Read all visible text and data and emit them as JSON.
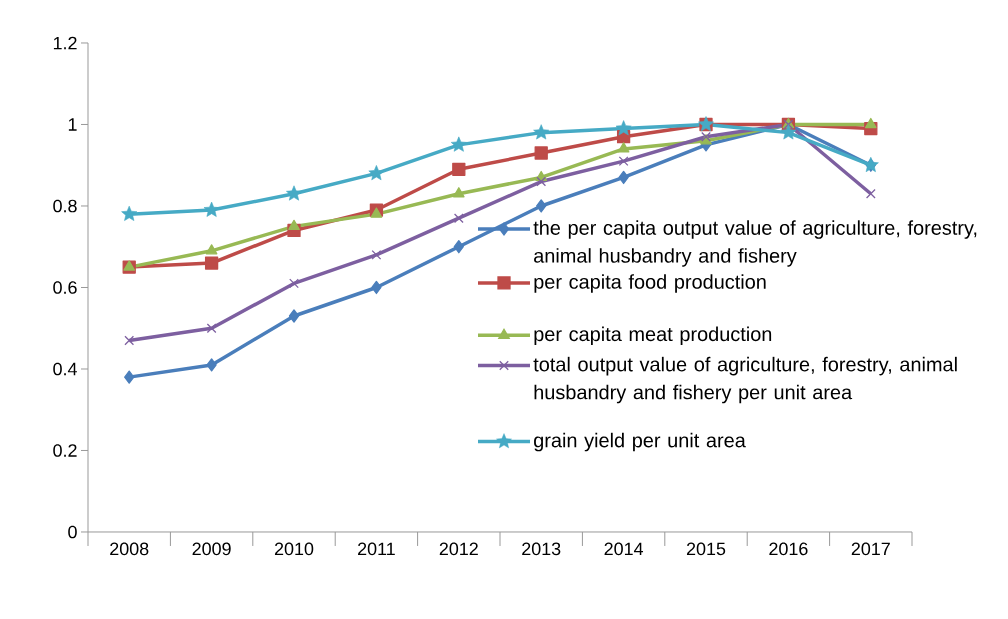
{
  "chart_data": {
    "type": "line",
    "categories": [
      "2008",
      "2009",
      "2010",
      "2011",
      "2012",
      "2013",
      "2014",
      "2015",
      "2016",
      "2017"
    ],
    "series": [
      {
        "name": "the per capita output value of agriculture, forestry, animal husbandry and fishery",
        "color": "#4a7ebb",
        "marker": "diamond",
        "values": [
          0.38,
          0.41,
          0.53,
          0.6,
          0.7,
          0.8,
          0.87,
          0.95,
          1.0,
          0.9
        ]
      },
      {
        "name": "per capita food production",
        "color": "#be4b48",
        "marker": "square",
        "values": [
          0.65,
          0.66,
          0.74,
          0.79,
          0.89,
          0.93,
          0.97,
          1.0,
          1.0,
          0.99
        ]
      },
      {
        "name": "per capita meat production",
        "color": "#98b954",
        "marker": "triangle",
        "values": [
          0.65,
          0.69,
          0.75,
          0.78,
          0.83,
          0.87,
          0.94,
          0.96,
          1.0,
          1.0
        ]
      },
      {
        "name": "total output value of agriculture, forestry, animal husbandry and fishery per unit area",
        "color": "#7d5fa0",
        "marker": "cross",
        "values": [
          0.47,
          0.5,
          0.61,
          0.68,
          0.77,
          0.86,
          0.91,
          0.97,
          1.0,
          0.83
        ]
      },
      {
        "name": "grain yield per unit area",
        "color": "#46aac5",
        "marker": "star",
        "values": [
          0.78,
          0.79,
          0.83,
          0.88,
          0.95,
          0.98,
          0.99,
          1.0,
          0.98,
          0.9
        ]
      }
    ],
    "ylim": [
      0,
      1.2
    ],
    "yticks": [
      0,
      0.2,
      0.4,
      0.6,
      0.8,
      1,
      1.2
    ],
    "grid": false,
    "legend": "bottom right",
    "line_style": "solid"
  }
}
